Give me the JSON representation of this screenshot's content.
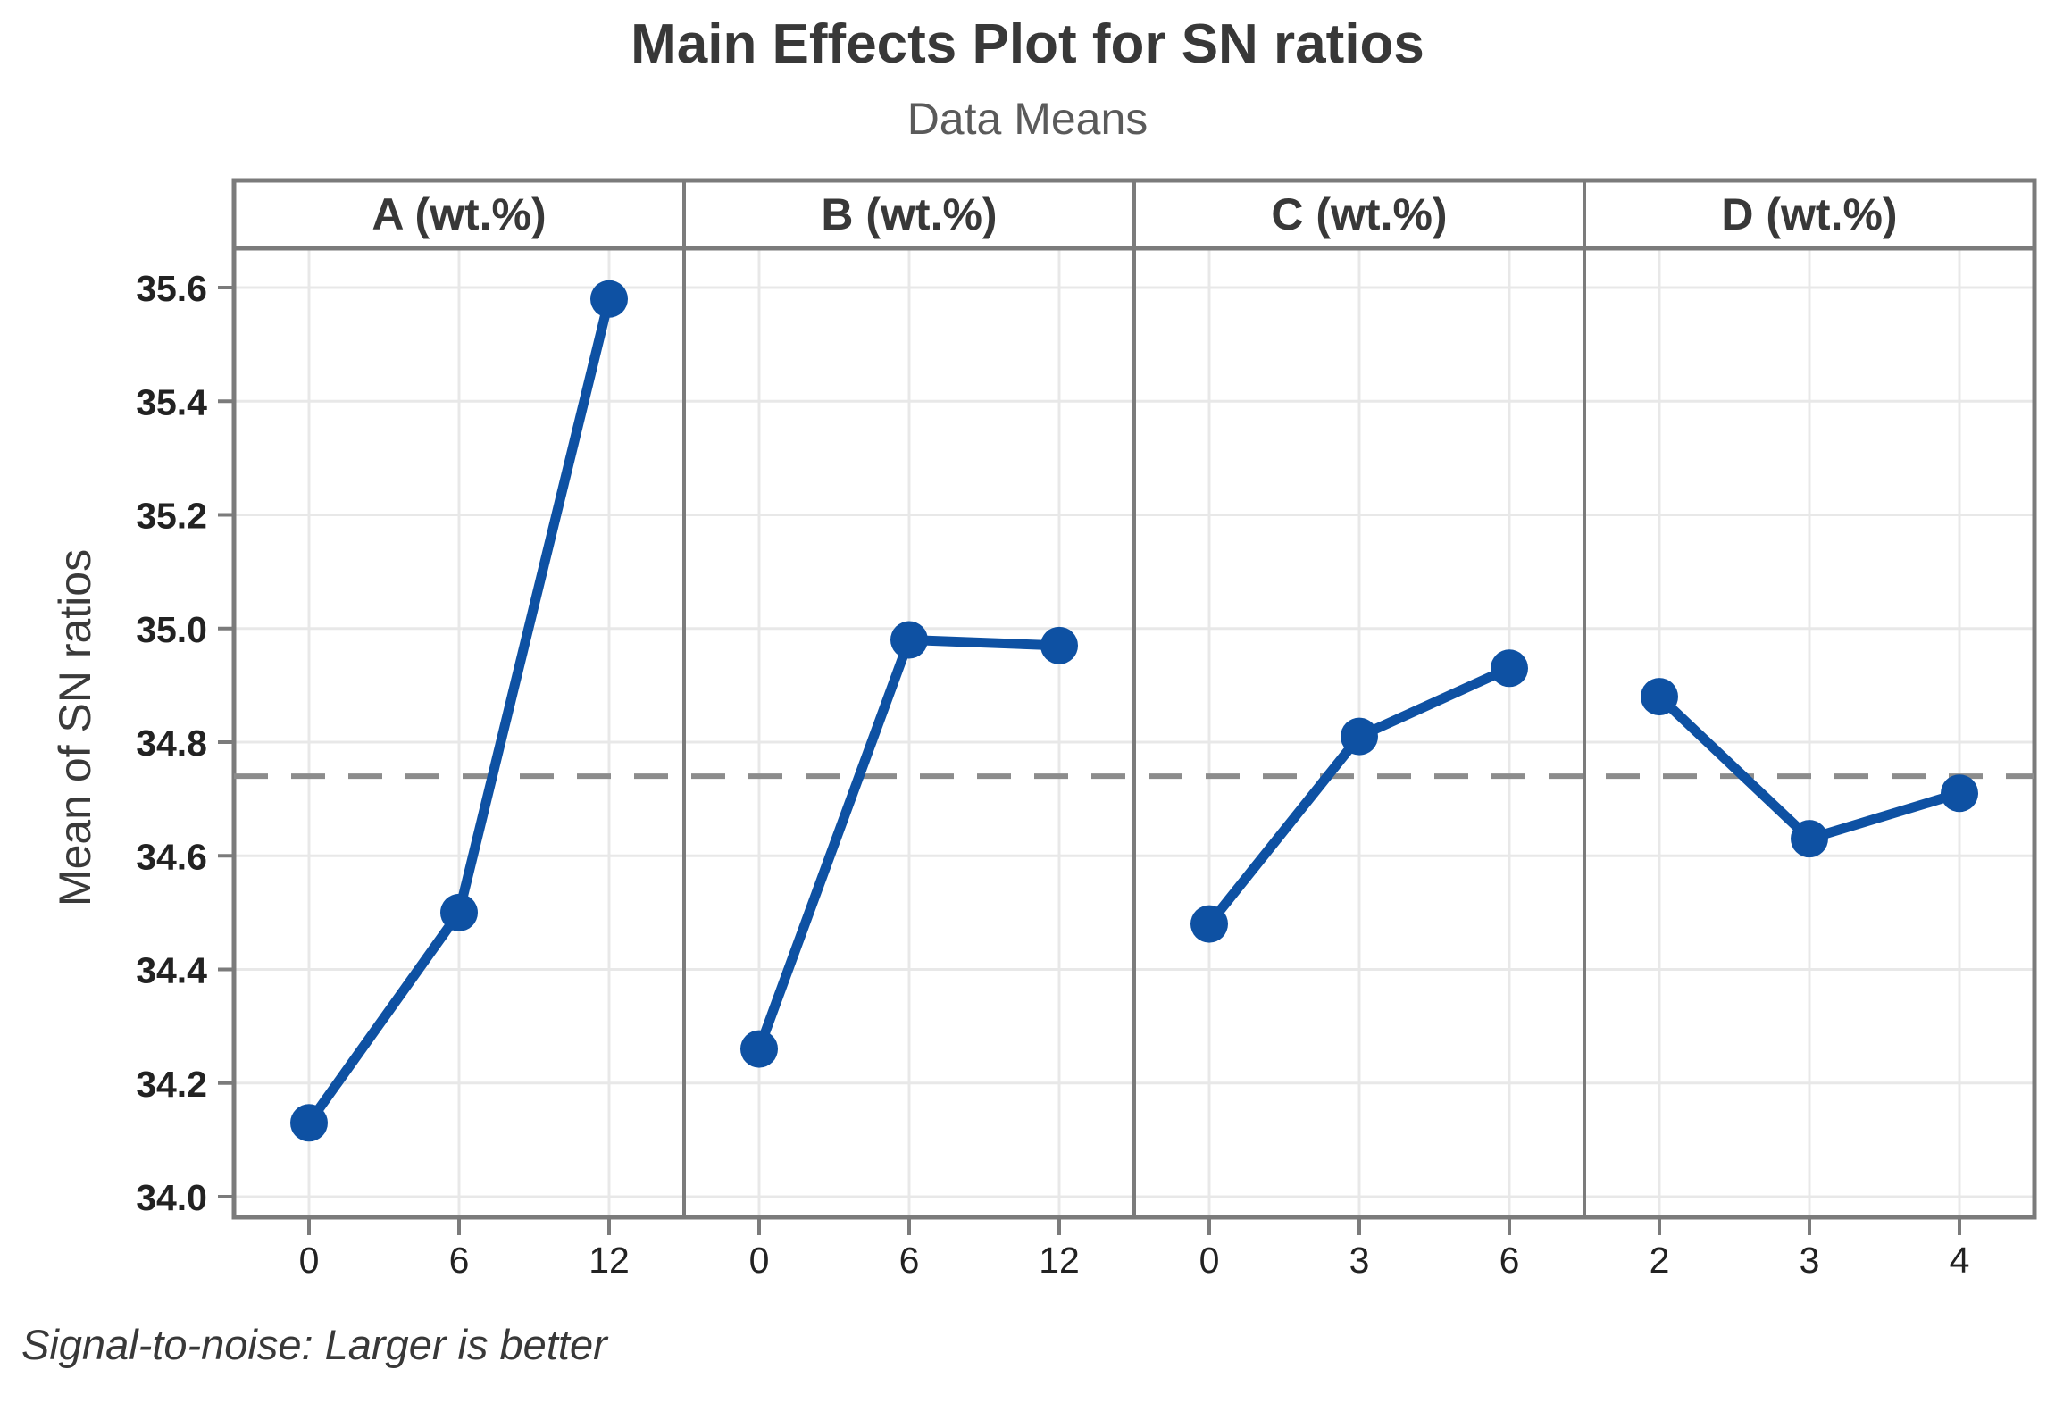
{
  "figure": {
    "title": "Main Effects Plot for SN ratios",
    "subtitle": "Data Means",
    "ylabel": "Mean of SN ratios",
    "footnote": "Signal-to-noise: Larger is better"
  },
  "chart_data": {
    "type": "line",
    "title": "Main Effects Plot for SN ratios",
    "subtitle": "Data Means",
    "ylabel": "Mean of SN ratios",
    "footnote": "Signal-to-noise: Larger is better",
    "grid": true,
    "legend": "none",
    "ylim": [
      33.96,
      35.67
    ],
    "yticks": [
      34.0,
      34.2,
      34.4,
      34.6,
      34.8,
      35.0,
      35.2,
      35.4,
      35.6
    ],
    "reference_line_mean": 34.74,
    "panels": [
      {
        "label": "A (wt.%)",
        "xticks": [
          "0",
          "6",
          "12"
        ],
        "values": [
          34.13,
          34.5,
          35.58
        ]
      },
      {
        "label": "B (wt.%)",
        "xticks": [
          "0",
          "6",
          "12"
        ],
        "values": [
          34.26,
          34.98,
          34.97
        ]
      },
      {
        "label": "C (wt.%)",
        "xticks": [
          "0",
          "3",
          "6"
        ],
        "values": [
          34.48,
          34.81,
          34.93
        ]
      },
      {
        "label": "D (wt.%)",
        "xticks": [
          "2",
          "3",
          "4"
        ],
        "values": [
          34.88,
          34.63,
          34.71
        ]
      }
    ],
    "colors": {
      "series": "#0e51a3",
      "frame": "#7b7b7b",
      "grid": "#e8e8e8",
      "reference": "#8c8c8c",
      "header_text": "#383838",
      "tick_text": "#222222"
    }
  }
}
